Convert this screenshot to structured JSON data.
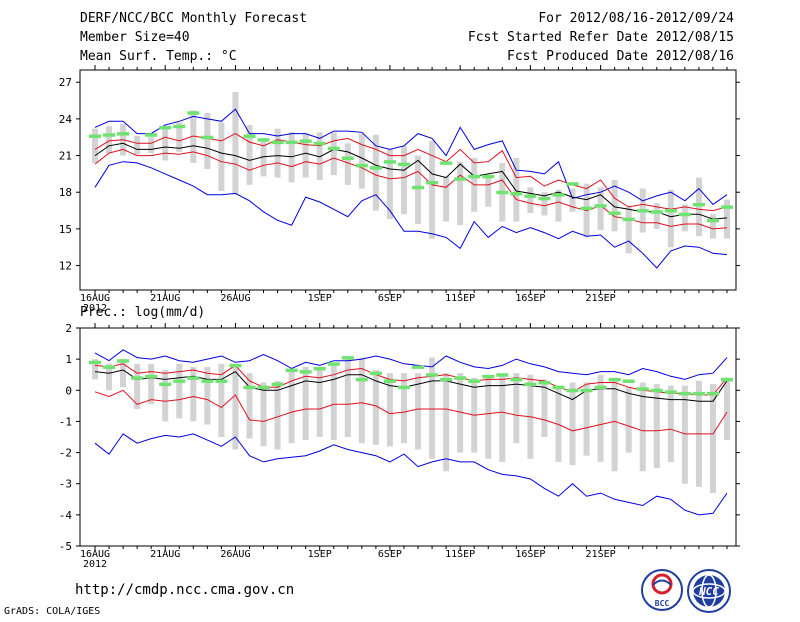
{
  "header": {
    "title": "DERF/NCC/BCC Monthly Forecast",
    "member_size": "Member Size=40",
    "variable": "Mean Surf. Temp.: °C",
    "period": "For 2012/08/16-2012/09/24",
    "started": "Fcst Started Refer Date 2012/08/15",
    "produced": "Fcst Produced Date 2012/08/16"
  },
  "footer": {
    "url": "http://cmdp.ncc.cma.gov.cn",
    "credit": "GrADS: COLA/IGES"
  },
  "logos": {
    "left_text": "BCC",
    "right_text": "NCC"
  },
  "colors": {
    "ensemble_mean": "#000000",
    "spread": "#e0101e",
    "extreme": "#0000e0",
    "observed_bar": "#6fe36f",
    "box": "#d3d3d3"
  },
  "chart_data": [
    {
      "type": "line",
      "title": "Mean Surf. Temp.: °C",
      "x_ticks": [
        "16AUG\n2012",
        "21AUG",
        "26AUG",
        "1SEP",
        "6SEP",
        "11SEP",
        "16SEP",
        "21SEP"
      ],
      "ylim": [
        10,
        28
      ],
      "yticks": [
        12,
        15,
        18,
        21,
        24,
        27
      ],
      "series": [
        {
          "name": "max",
          "values": [
            23.3,
            23.8,
            23.8,
            22.8,
            22.8,
            23.5,
            23.8,
            24.2,
            24.0,
            23.8,
            24.8,
            22.8,
            22.8,
            22.6,
            22.8,
            22.8,
            22.4,
            23.0,
            23.0,
            22.9,
            21.8,
            21.5,
            21.8,
            22.8,
            22.4,
            21.0,
            23.3,
            21.5,
            21.9,
            22.2,
            19.8,
            19.7,
            19.5,
            20.5,
            17.5,
            17.8,
            18.0,
            18.5,
            18.0,
            17.3,
            17.7,
            18.0,
            17.3,
            18.3,
            17.0,
            17.8
          ]
        },
        {
          "name": "upper",
          "values": [
            21.5,
            22.2,
            22.3,
            22.0,
            22.0,
            22.5,
            22.2,
            22.6,
            22.4,
            22.2,
            22.8,
            22.1,
            21.8,
            22.3,
            22.1,
            21.9,
            21.8,
            22.2,
            22.4,
            21.9,
            21.5,
            21.0,
            21.0,
            21.5,
            21.0,
            20.5,
            21.5,
            20.4,
            20.5,
            21.4,
            19.2,
            19.3,
            18.5,
            19.0,
            18.6,
            18.3,
            19.0,
            17.5,
            16.8,
            17.0,
            16.8,
            16.6,
            16.8,
            16.6,
            16.5,
            16.8
          ]
        },
        {
          "name": "mean",
          "values": [
            21.0,
            21.8,
            22.0,
            21.5,
            21.5,
            21.7,
            21.6,
            21.8,
            21.6,
            21.2,
            21.0,
            20.6,
            20.9,
            21.0,
            20.9,
            21.2,
            20.9,
            21.5,
            21.3,
            20.8,
            20.2,
            19.9,
            19.8,
            20.6,
            19.5,
            19.2,
            20.3,
            19.3,
            19.5,
            19.7,
            18.1,
            17.9,
            17.7,
            18.0,
            17.6,
            17.4,
            17.8,
            16.8,
            16.6,
            16.4,
            16.4,
            16.0,
            16.2,
            16.2,
            15.8,
            15.9
          ]
        },
        {
          "name": "lower",
          "values": [
            20.3,
            21.2,
            21.5,
            21.0,
            21.0,
            21.2,
            21.1,
            21.3,
            21.0,
            20.5,
            20.3,
            19.8,
            20.2,
            20.4,
            20.1,
            20.5,
            20.3,
            20.8,
            20.4,
            20.0,
            19.4,
            19.1,
            19.2,
            19.7,
            18.6,
            18.4,
            19.4,
            18.6,
            18.6,
            19.0,
            17.4,
            17.1,
            16.9,
            17.2,
            16.8,
            16.5,
            16.9,
            16.0,
            15.8,
            15.5,
            15.5,
            15.2,
            15.4,
            15.4,
            15.0,
            15.1
          ]
        },
        {
          "name": "min",
          "values": [
            18.4,
            20.2,
            20.5,
            20.4,
            20.0,
            19.5,
            19.0,
            18.5,
            17.8,
            17.8,
            17.9,
            17.3,
            16.4,
            15.7,
            15.3,
            17.6,
            17.2,
            16.6,
            16.0,
            17.3,
            17.8,
            16.5,
            14.8,
            14.8,
            14.6,
            14.3,
            13.4,
            15.6,
            14.3,
            15.2,
            14.7,
            15.1,
            14.7,
            14.2,
            14.8,
            14.4,
            14.5,
            13.5,
            14.0,
            13.0,
            11.8,
            13.2,
            13.6,
            13.5,
            13.0,
            12.9
          ]
        },
        {
          "name": "box_top",
          "values": [
            23.2,
            23.4,
            23.6,
            22.6,
            22.5,
            23.2,
            23.7,
            24.7,
            24.5,
            23.7,
            26.2,
            23.5,
            22.2,
            23.2,
            22.9,
            22.8,
            22.9,
            22.9,
            22.0,
            22.8,
            22.7,
            21.5,
            21.8,
            21.0,
            22.2,
            19.3,
            20.5,
            20.8,
            19.3,
            20.4,
            20.8,
            18.4,
            18.0,
            18.2,
            18.3,
            18.7,
            18.4,
            19.0,
            16.8,
            18.3,
            17.1,
            18.2,
            17.0,
            19.2,
            16.2,
            17.4
          ]
        },
        {
          "name": "box_bottom",
          "values": [
            20.4,
            21.2,
            21.0,
            21.1,
            21.2,
            20.6,
            21.3,
            20.4,
            19.9,
            18.1,
            17.8,
            18.6,
            19.3,
            19.2,
            18.8,
            19.2,
            19.0,
            19.4,
            18.6,
            18.3,
            16.5,
            15.8,
            16.2,
            15.4,
            14.2,
            15.6,
            15.3,
            16.4,
            16.8,
            15.6,
            15.6,
            16.3,
            16.1,
            15.6,
            16.4,
            14.3,
            14.9,
            14.8,
            13.0,
            14.7,
            15.0,
            13.5,
            14.8,
            14.4,
            14.2,
            14.2
          ]
        },
        {
          "name": "observed",
          "values": [
            22.6,
            22.7,
            22.8,
            null,
            22.7,
            23.3,
            23.4,
            24.5,
            22.5,
            null,
            null,
            22.6,
            22.3,
            22.1,
            22.1,
            22.2,
            22.0,
            21.6,
            20.8,
            20.2,
            20.0,
            20.5,
            20.3,
            18.4,
            18.8,
            20.4,
            19.1,
            19.3,
            19.3,
            18.0,
            17.9,
            17.7,
            17.5,
            17.8,
            18.7,
            16.7,
            16.9,
            16.3,
            15.8,
            16.5,
            16.4,
            16.5,
            16.2,
            17.0,
            15.7,
            16.8
          ]
        }
      ]
    },
    {
      "type": "line",
      "title": "Prec.: log(mm/d)",
      "x_ticks": [
        "16AUG\n2012",
        "21AUG",
        "26AUG",
        "1SEP",
        "6SEP",
        "11SEP",
        "16SEP",
        "21SEP"
      ],
      "ylim": [
        -5,
        2
      ],
      "yticks": [
        -5,
        -4,
        -3,
        -2,
        -1,
        0,
        1,
        2
      ],
      "series": [
        {
          "name": "max",
          "values": [
            1.2,
            0.95,
            1.3,
            1.05,
            1.0,
            1.1,
            0.95,
            0.9,
            1.0,
            1.1,
            0.9,
            0.95,
            1.15,
            0.95,
            0.7,
            0.9,
            0.8,
            0.95,
            0.95,
            1.0,
            1.1,
            1.0,
            0.85,
            0.8,
            0.75,
            1.1,
            0.9,
            0.75,
            0.7,
            0.8,
            1.0,
            0.85,
            0.75,
            0.6,
            0.55,
            0.5,
            0.6,
            0.6,
            0.5,
            0.7,
            0.6,
            0.45,
            0.35,
            0.5,
            0.55,
            1.05
          ]
        },
        {
          "name": "upper",
          "values": [
            0.8,
            0.75,
            0.85,
            0.55,
            0.6,
            0.55,
            0.6,
            0.65,
            0.55,
            0.5,
            0.8,
            0.3,
            0.1,
            0.1,
            0.3,
            0.45,
            0.4,
            0.5,
            0.65,
            0.7,
            0.5,
            0.35,
            0.3,
            0.4,
            0.45,
            0.5,
            0.4,
            0.3,
            0.35,
            0.35,
            0.4,
            0.35,
            0.3,
            0.1,
            -0.05,
            0.2,
            0.25,
            0.25,
            0.1,
            0.0,
            -0.05,
            -0.1,
            -0.1,
            -0.15,
            -0.15,
            0.4
          ]
        },
        {
          "name": "mean",
          "values": [
            0.6,
            0.55,
            0.65,
            0.35,
            0.4,
            0.35,
            0.4,
            0.45,
            0.35,
            0.35,
            0.6,
            0.1,
            0.0,
            0.0,
            0.15,
            0.3,
            0.25,
            0.35,
            0.5,
            0.5,
            0.3,
            0.15,
            0.1,
            0.2,
            0.3,
            0.3,
            0.2,
            0.1,
            0.15,
            0.15,
            0.2,
            0.15,
            0.1,
            -0.1,
            -0.3,
            0.0,
            0.05,
            0.05,
            -0.1,
            -0.2,
            -0.25,
            -0.3,
            -0.3,
            -0.35,
            -0.35,
            0.3
          ]
        },
        {
          "name": "lower",
          "values": [
            -0.05,
            -0.2,
            0.0,
            -0.45,
            -0.3,
            -0.35,
            -0.3,
            -0.2,
            -0.3,
            -0.55,
            -0.15,
            -0.95,
            -1.0,
            -0.85,
            -0.7,
            -0.6,
            -0.6,
            -0.45,
            -0.45,
            -0.4,
            -0.5,
            -0.75,
            -0.7,
            -0.6,
            -0.6,
            -0.6,
            -0.7,
            -0.8,
            -0.75,
            -0.7,
            -0.8,
            -0.85,
            -0.95,
            -1.1,
            -1.3,
            -1.2,
            -1.1,
            -1.0,
            -1.15,
            -1.3,
            -1.3,
            -1.25,
            -1.4,
            -1.4,
            -1.4,
            -0.7
          ]
        },
        {
          "name": "min",
          "values": [
            -1.7,
            -2.05,
            -1.4,
            -1.7,
            -1.55,
            -1.45,
            -1.5,
            -1.4,
            -1.6,
            -1.8,
            -1.5,
            -2.1,
            -2.3,
            -2.2,
            -2.15,
            -2.1,
            -1.95,
            -1.75,
            -1.9,
            -2.0,
            -2.1,
            -2.3,
            -2.05,
            -2.45,
            -2.3,
            -2.2,
            -2.3,
            -2.3,
            -2.55,
            -2.7,
            -2.75,
            -2.85,
            -3.15,
            -3.4,
            -3.0,
            -3.4,
            -3.3,
            -3.5,
            -3.6,
            -3.7,
            -3.4,
            -3.5,
            -3.85,
            -4.0,
            -3.95,
            -3.3
          ]
        },
        {
          "name": "box_top",
          "values": [
            1.0,
            0.85,
            1.0,
            0.85,
            0.85,
            0.65,
            0.85,
            0.75,
            0.75,
            0.85,
            0.75,
            0.55,
            0.25,
            0.3,
            0.6,
            0.75,
            0.75,
            0.8,
            1.0,
            1.05,
            0.65,
            0.55,
            0.55,
            0.55,
            1.05,
            0.55,
            0.55,
            0.4,
            0.45,
            0.45,
            0.55,
            0.5,
            0.35,
            0.15,
            0.25,
            0.25,
            0.5,
            0.4,
            0.1,
            0.25,
            0.2,
            0.15,
            0.15,
            0.3,
            0.2,
            0.4
          ]
        },
        {
          "name": "box_bottom",
          "values": [
            0.35,
            0.0,
            0.1,
            -0.6,
            -0.45,
            -1.0,
            -0.9,
            -1.0,
            -1.1,
            -1.5,
            -1.9,
            -1.55,
            -1.8,
            -1.9,
            -1.7,
            -1.6,
            -1.5,
            -1.6,
            -1.5,
            -1.7,
            -1.75,
            -1.8,
            -1.7,
            -1.9,
            -2.2,
            -2.6,
            -2.0,
            -2.0,
            -2.2,
            -2.3,
            -1.7,
            -2.2,
            -1.5,
            -2.3,
            -2.4,
            -2.1,
            -2.3,
            -2.6,
            -2.0,
            -2.6,
            -2.5,
            -2.3,
            -3.0,
            -3.1,
            -3.3,
            -1.6
          ]
        },
        {
          "name": "observed",
          "values": [
            0.9,
            0.75,
            0.95,
            0.4,
            0.45,
            0.2,
            0.3,
            0.4,
            0.3,
            0.3,
            0.8,
            0.1,
            0.1,
            0.2,
            0.65,
            0.6,
            0.7,
            0.85,
            1.05,
            0.35,
            0.55,
            0.3,
            0.1,
            0.75,
            0.5,
            0.35,
            0.4,
            0.3,
            0.45,
            0.5,
            0.35,
            0.2,
            0.25,
            0.1,
            0.0,
            0.0,
            0.1,
            0.35,
            0.3,
            0.05,
            0.0,
            -0.05,
            -0.1,
            -0.1,
            -0.1,
            0.35
          ]
        }
      ]
    }
  ]
}
